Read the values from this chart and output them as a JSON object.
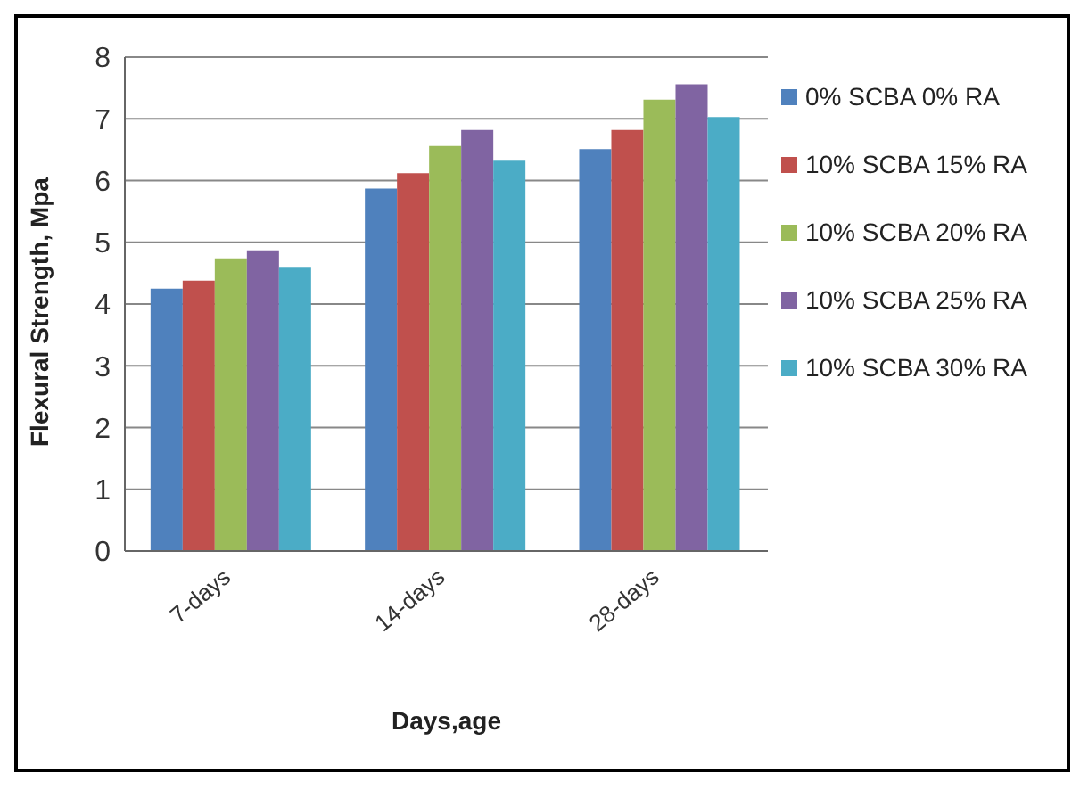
{
  "chart_data": {
    "type": "bar",
    "xlabel": "Days,age",
    "ylabel": "Flexural Strength, Mpa",
    "categories": [
      "7-days",
      "14-days",
      "28-days"
    ],
    "series": [
      {
        "name": "0% SCBA 0% RA",
        "color": "#4f81bd",
        "values": [
          4.25,
          5.87,
          6.51
        ]
      },
      {
        "name": "10% SCBA 15% RA",
        "color": "#c0504d",
        "values": [
          4.38,
          6.12,
          6.82
        ]
      },
      {
        "name": "10% SCBA 20% RA",
        "color": "#9bbb59",
        "values": [
          4.74,
          6.56,
          7.31
        ]
      },
      {
        "name": "10% SCBA 25% RA",
        "color": "#8064a2",
        "values": [
          4.87,
          6.82,
          7.56
        ]
      },
      {
        "name": "10% SCBA 30% RA",
        "color": "#4bacc6",
        "values": [
          4.59,
          6.32,
          7.03
        ]
      }
    ],
    "ylim": [
      0,
      8
    ],
    "yticks": [
      0,
      1,
      2,
      3,
      4,
      5,
      6,
      7,
      8
    ],
    "grid": "y",
    "legend": "right"
  }
}
